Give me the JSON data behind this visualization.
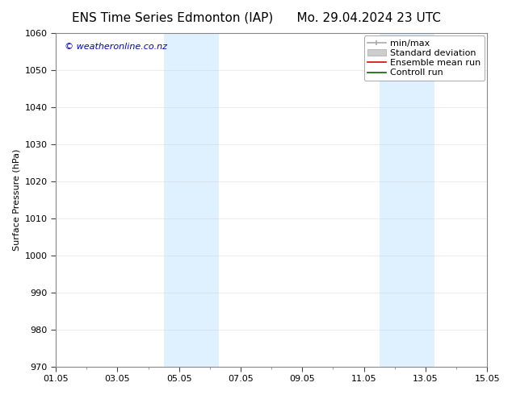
{
  "title_left": "ENS Time Series Edmonton (IAP)",
  "title_right": "Mo. 29.04.2024 23 UTC",
  "ylabel": "Surface Pressure (hPa)",
  "ylim": [
    970,
    1060
  ],
  "yticks": [
    970,
    980,
    990,
    1000,
    1010,
    1020,
    1030,
    1040,
    1050,
    1060
  ],
  "xtick_labels": [
    "01.05",
    "03.05",
    "05.05",
    "07.05",
    "09.05",
    "11.05",
    "13.05",
    "15.05"
  ],
  "xtick_positions": [
    0,
    2,
    4,
    6,
    8,
    10,
    12,
    14
  ],
  "xlim": [
    0,
    14
  ],
  "shaded_bands": [
    {
      "x_start": 3.5,
      "x_end": 5.3
    },
    {
      "x_start": 10.5,
      "x_end": 12.3
    }
  ],
  "shade_color": "#daeeff",
  "shade_alpha": 0.85,
  "background_color": "#ffffff",
  "plot_bg_color": "#ffffff",
  "copyright_text": "© weatheronline.co.nz",
  "copyright_color": "#0000cc",
  "copyright_fontsize": 8,
  "grid_color": "#cccccc",
  "grid_alpha": 0.5,
  "title_fontsize": 11,
  "axis_label_fontsize": 8,
  "tick_fontsize": 8,
  "legend_fontsize": 8,
  "spine_color": "#888888",
  "tick_color": "#444444"
}
